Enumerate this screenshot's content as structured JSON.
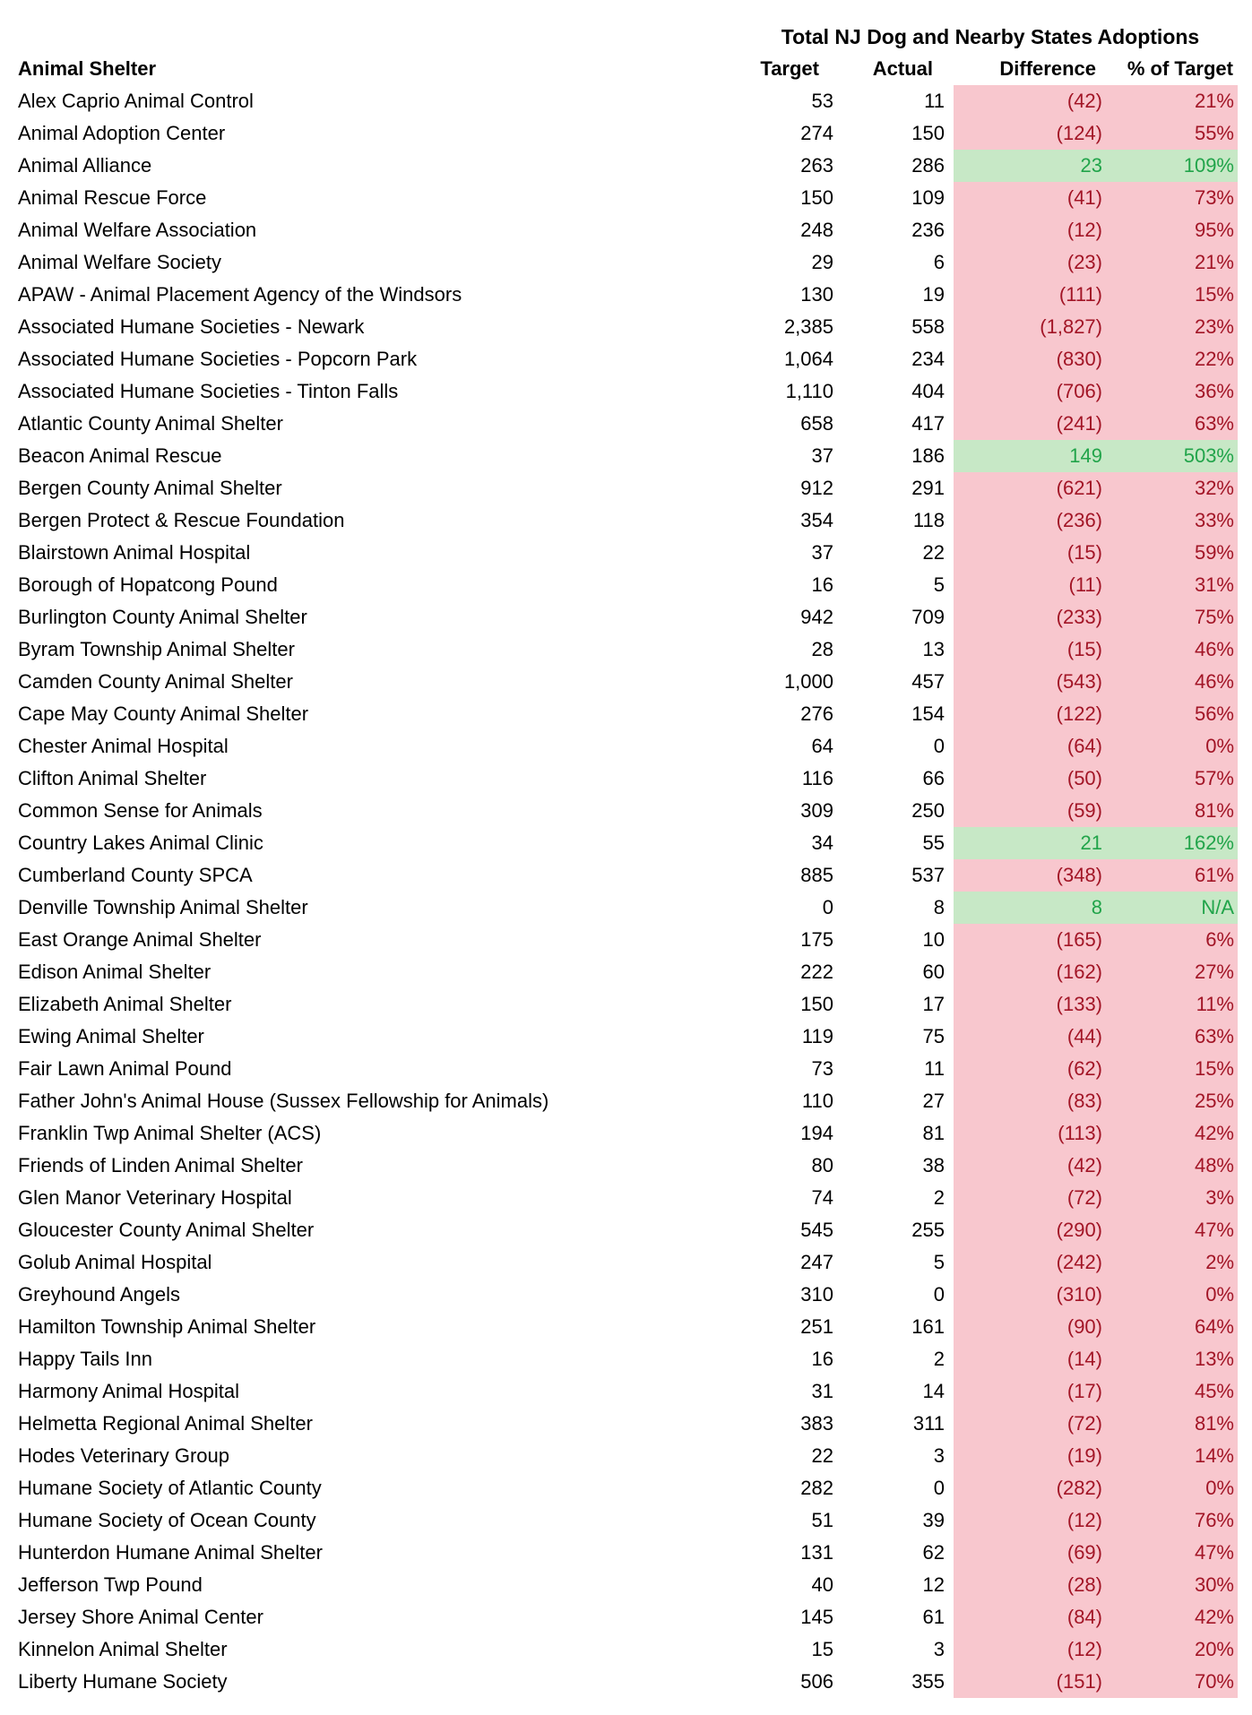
{
  "title": "Total NJ Dog and Nearby States Adoptions",
  "columns": {
    "shelter": "Animal Shelter",
    "target": "Target",
    "actual": "Actual",
    "difference": "Difference",
    "pct_of_target": "% of Target"
  },
  "colors": {
    "under_fill": "#F8C7CE",
    "under_text": "#A21526",
    "over_fill": "#C7E8C6",
    "over_text": "#21A44A",
    "default_text": "#000000",
    "background": "#FFFFFF"
  },
  "rows": [
    {
      "name": "Alex Caprio Animal Control",
      "target": "53",
      "actual": "11",
      "difference": "(42)",
      "pct": "21%",
      "status": "under"
    },
    {
      "name": "Animal Adoption Center",
      "target": "274",
      "actual": "150",
      "difference": "(124)",
      "pct": "55%",
      "status": "under"
    },
    {
      "name": "Animal Alliance",
      "target": "263",
      "actual": "286",
      "difference": "23",
      "pct": "109%",
      "status": "over"
    },
    {
      "name": "Animal Rescue Force",
      "target": "150",
      "actual": "109",
      "difference": "(41)",
      "pct": "73%",
      "status": "under"
    },
    {
      "name": "Animal Welfare Association",
      "target": "248",
      "actual": "236",
      "difference": "(12)",
      "pct": "95%",
      "status": "under"
    },
    {
      "name": "Animal Welfare Society",
      "target": "29",
      "actual": "6",
      "difference": "(23)",
      "pct": "21%",
      "status": "under"
    },
    {
      "name": "APAW - Animal Placement Agency of the Windsors",
      "target": "130",
      "actual": "19",
      "difference": "(111)",
      "pct": "15%",
      "status": "under"
    },
    {
      "name": "Associated Humane Societies - Newark",
      "target": "2,385",
      "actual": "558",
      "difference": "(1,827)",
      "pct": "23%",
      "status": "under"
    },
    {
      "name": "Associated Humane Societies - Popcorn Park",
      "target": "1,064",
      "actual": "234",
      "difference": "(830)",
      "pct": "22%",
      "status": "under"
    },
    {
      "name": "Associated Humane Societies - Tinton Falls",
      "target": "1,110",
      "actual": "404",
      "difference": "(706)",
      "pct": "36%",
      "status": "under"
    },
    {
      "name": "Atlantic County Animal Shelter",
      "target": "658",
      "actual": "417",
      "difference": "(241)",
      "pct": "63%",
      "status": "under"
    },
    {
      "name": "Beacon Animal Rescue",
      "target": "37",
      "actual": "186",
      "difference": "149",
      "pct": "503%",
      "status": "over"
    },
    {
      "name": "Bergen County Animal Shelter",
      "target": "912",
      "actual": "291",
      "difference": "(621)",
      "pct": "32%",
      "status": "under"
    },
    {
      "name": "Bergen Protect & Rescue Foundation",
      "target": "354",
      "actual": "118",
      "difference": "(236)",
      "pct": "33%",
      "status": "under"
    },
    {
      "name": "Blairstown Animal Hospital",
      "target": "37",
      "actual": "22",
      "difference": "(15)",
      "pct": "59%",
      "status": "under"
    },
    {
      "name": "Borough of Hopatcong Pound",
      "target": "16",
      "actual": "5",
      "difference": "(11)",
      "pct": "31%",
      "status": "under"
    },
    {
      "name": "Burlington County Animal Shelter",
      "target": "942",
      "actual": "709",
      "difference": "(233)",
      "pct": "75%",
      "status": "under"
    },
    {
      "name": "Byram Township Animal Shelter",
      "target": "28",
      "actual": "13",
      "difference": "(15)",
      "pct": "46%",
      "status": "under"
    },
    {
      "name": "Camden County Animal Shelter",
      "target": "1,000",
      "actual": "457",
      "difference": "(543)",
      "pct": "46%",
      "status": "under"
    },
    {
      "name": "Cape May County Animal Shelter",
      "target": "276",
      "actual": "154",
      "difference": "(122)",
      "pct": "56%",
      "status": "under"
    },
    {
      "name": "Chester Animal Hospital",
      "target": "64",
      "actual": "0",
      "difference": "(64)",
      "pct": "0%",
      "status": "under"
    },
    {
      "name": "Clifton Animal Shelter",
      "target": "116",
      "actual": "66",
      "difference": "(50)",
      "pct": "57%",
      "status": "under"
    },
    {
      "name": "Common Sense for Animals",
      "target": "309",
      "actual": "250",
      "difference": "(59)",
      "pct": "81%",
      "status": "under"
    },
    {
      "name": "Country Lakes Animal Clinic",
      "target": "34",
      "actual": "55",
      "difference": "21",
      "pct": "162%",
      "status": "over"
    },
    {
      "name": "Cumberland County SPCA",
      "target": "885",
      "actual": "537",
      "difference": "(348)",
      "pct": "61%",
      "status": "under"
    },
    {
      "name": "Denville Township Animal Shelter",
      "target": "0",
      "actual": "8",
      "difference": "8",
      "pct": "N/A",
      "status": "over"
    },
    {
      "name": "East Orange Animal Shelter",
      "target": "175",
      "actual": "10",
      "difference": "(165)",
      "pct": "6%",
      "status": "under"
    },
    {
      "name": "Edison Animal Shelter",
      "target": "222",
      "actual": "60",
      "difference": "(162)",
      "pct": "27%",
      "status": "under"
    },
    {
      "name": "Elizabeth Animal Shelter",
      "target": "150",
      "actual": "17",
      "difference": "(133)",
      "pct": "11%",
      "status": "under"
    },
    {
      "name": "Ewing Animal Shelter",
      "target": "119",
      "actual": "75",
      "difference": "(44)",
      "pct": "63%",
      "status": "under"
    },
    {
      "name": "Fair Lawn Animal Pound",
      "target": "73",
      "actual": "11",
      "difference": "(62)",
      "pct": "15%",
      "status": "under"
    },
    {
      "name": "Father John's Animal House (Sussex Fellowship for Animals)",
      "target": "110",
      "actual": "27",
      "difference": "(83)",
      "pct": "25%",
      "status": "under"
    },
    {
      "name": "Franklin Twp Animal Shelter (ACS)",
      "target": "194",
      "actual": "81",
      "difference": "(113)",
      "pct": "42%",
      "status": "under"
    },
    {
      "name": "Friends of Linden Animal Shelter",
      "target": "80",
      "actual": "38",
      "difference": "(42)",
      "pct": "48%",
      "status": "under"
    },
    {
      "name": "Glen Manor Veterinary Hospital",
      "target": "74",
      "actual": "2",
      "difference": "(72)",
      "pct": "3%",
      "status": "under"
    },
    {
      "name": "Gloucester County Animal Shelter",
      "target": "545",
      "actual": "255",
      "difference": "(290)",
      "pct": "47%",
      "status": "under"
    },
    {
      "name": "Golub Animal Hospital",
      "target": "247",
      "actual": "5",
      "difference": "(242)",
      "pct": "2%",
      "status": "under"
    },
    {
      "name": "Greyhound Angels",
      "target": "310",
      "actual": "0",
      "difference": "(310)",
      "pct": "0%",
      "status": "under"
    },
    {
      "name": "Hamilton Township Animal Shelter",
      "target": "251",
      "actual": "161",
      "difference": "(90)",
      "pct": "64%",
      "status": "under"
    },
    {
      "name": "Happy Tails Inn",
      "target": "16",
      "actual": "2",
      "difference": "(14)",
      "pct": "13%",
      "status": "under"
    },
    {
      "name": "Harmony Animal Hospital",
      "target": "31",
      "actual": "14",
      "difference": "(17)",
      "pct": "45%",
      "status": "under"
    },
    {
      "name": "Helmetta Regional Animal Shelter",
      "target": "383",
      "actual": "311",
      "difference": "(72)",
      "pct": "81%",
      "status": "under"
    },
    {
      "name": "Hodes Veterinary Group",
      "target": "22",
      "actual": "3",
      "difference": "(19)",
      "pct": "14%",
      "status": "under"
    },
    {
      "name": "Humane Society of Atlantic County",
      "target": "282",
      "actual": "0",
      "difference": "(282)",
      "pct": "0%",
      "status": "under"
    },
    {
      "name": "Humane Society of Ocean County",
      "target": "51",
      "actual": "39",
      "difference": "(12)",
      "pct": "76%",
      "status": "under"
    },
    {
      "name": "Hunterdon Humane Animal Shelter",
      "target": "131",
      "actual": "62",
      "difference": "(69)",
      "pct": "47%",
      "status": "under"
    },
    {
      "name": "Jefferson Twp Pound",
      "target": "40",
      "actual": "12",
      "difference": "(28)",
      "pct": "30%",
      "status": "under"
    },
    {
      "name": "Jersey Shore Animal Center",
      "target": "145",
      "actual": "61",
      "difference": "(84)",
      "pct": "42%",
      "status": "under"
    },
    {
      "name": "Kinnelon Animal Shelter",
      "target": "15",
      "actual": "3",
      "difference": "(12)",
      "pct": "20%",
      "status": "under"
    },
    {
      "name": "Liberty Humane Society",
      "target": "506",
      "actual": "355",
      "difference": "(151)",
      "pct": "70%",
      "status": "under"
    }
  ]
}
